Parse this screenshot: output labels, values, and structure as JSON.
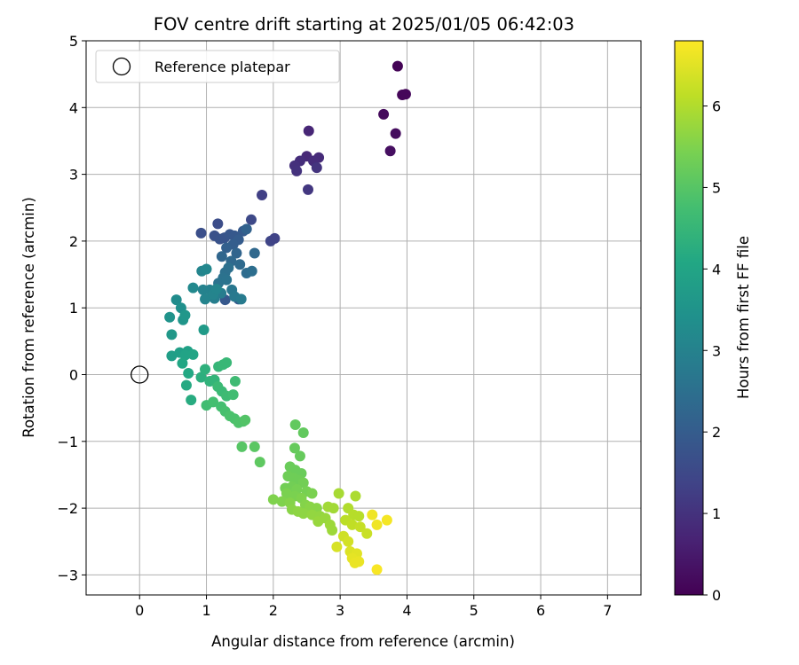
{
  "chart_data": {
    "type": "scatter",
    "title": "FOV centre drift starting at 2025/01/05 06:42:03",
    "xlabel": "Angular distance from reference (arcmin)",
    "ylabel": "Rotation from reference (arcmin)",
    "xlim": [
      -0.8,
      7.5
    ],
    "ylim": [
      -3.3,
      5.0
    ],
    "xticks": [
      0,
      1,
      2,
      3,
      4,
      5,
      6,
      7
    ],
    "yticks": [
      -3,
      -2,
      -1,
      0,
      1,
      2,
      3,
      4,
      5
    ],
    "grid": true,
    "legend": {
      "placement": "upper-left",
      "entries": [
        {
          "label": "Reference platepar",
          "marker": "open-circle"
        }
      ]
    },
    "reference_point": {
      "x": 0,
      "y": 0
    },
    "colorbar": {
      "label": "Hours from first FF file",
      "range": [
        0,
        6.8
      ],
      "ticks": [
        0,
        1,
        2,
        3,
        4,
        5,
        6
      ],
      "colormap": "viridis"
    },
    "points": [
      [
        3.86,
        4.62,
        0.05
      ],
      [
        3.93,
        4.19,
        0.1
      ],
      [
        3.98,
        4.2,
        0.12
      ],
      [
        3.65,
        3.9,
        0.18
      ],
      [
        3.83,
        3.61,
        0.22
      ],
      [
        3.75,
        3.35,
        0.28
      ],
      [
        2.53,
        3.65,
        0.75
      ],
      [
        2.5,
        3.27,
        0.8
      ],
      [
        2.68,
        3.25,
        0.85
      ],
      [
        2.4,
        3.2,
        0.9
      ],
      [
        2.32,
        3.13,
        0.95
      ],
      [
        2.6,
        3.2,
        0.88
      ],
      [
        2.35,
        3.05,
        1.0
      ],
      [
        2.65,
        3.1,
        1.05
      ],
      [
        2.52,
        2.77,
        1.1
      ],
      [
        1.83,
        2.69,
        1.3
      ],
      [
        1.96,
        2.0,
        1.4
      ],
      [
        2.02,
        2.04,
        1.35
      ],
      [
        1.67,
        2.32,
        1.5
      ],
      [
        1.17,
        2.26,
        1.6
      ],
      [
        0.92,
        2.12,
        1.65
      ],
      [
        1.12,
        2.08,
        1.7
      ],
      [
        1.2,
        2.03,
        1.75
      ],
      [
        1.27,
        2.05,
        1.8
      ],
      [
        1.35,
        2.1,
        1.85
      ],
      [
        1.42,
        2.08,
        1.9
      ],
      [
        1.55,
        2.15,
        1.95
      ],
      [
        1.48,
        2.02,
        2.0
      ],
      [
        1.4,
        1.95,
        2.05
      ],
      [
        1.3,
        1.9,
        2.1
      ],
      [
        1.6,
        2.18,
        2.15
      ],
      [
        1.45,
        1.82,
        2.2
      ],
      [
        1.23,
        1.77,
        2.25
      ],
      [
        1.37,
        1.7,
        2.3
      ],
      [
        1.5,
        1.65,
        2.35
      ],
      [
        1.72,
        1.82,
        2.3
      ],
      [
        1.6,
        1.52,
        2.4
      ],
      [
        1.68,
        1.55,
        2.45
      ],
      [
        1.28,
        1.53,
        2.5
      ],
      [
        1.33,
        1.6,
        2.5
      ],
      [
        1.25,
        1.45,
        2.55
      ],
      [
        1.18,
        1.37,
        2.6
      ],
      [
        1.3,
        1.42,
        2.6
      ],
      [
        1.28,
        1.12,
        1.9
      ],
      [
        1.48,
        1.13,
        2.0
      ],
      [
        1.38,
        1.27,
        2.7
      ],
      [
        1.42,
        1.17,
        2.75
      ],
      [
        1.52,
        1.13,
        2.8
      ],
      [
        1.22,
        1.22,
        2.85
      ],
      [
        1.12,
        1.14,
        2.9
      ],
      [
        1.05,
        1.27,
        2.95
      ],
      [
        0.95,
        1.27,
        3.0
      ],
      [
        0.98,
        1.13,
        3.05
      ],
      [
        1.1,
        1.2,
        3.05
      ],
      [
        1.15,
        1.28,
        3.1
      ],
      [
        0.93,
        1.55,
        3.1
      ],
      [
        1.0,
        1.58,
        3.15
      ],
      [
        0.8,
        1.3,
        3.2
      ],
      [
        0.55,
        1.12,
        3.3
      ],
      [
        0.62,
        1.0,
        3.4
      ],
      [
        0.45,
        0.86,
        3.5
      ],
      [
        0.65,
        0.82,
        3.55
      ],
      [
        0.68,
        0.89,
        3.6
      ],
      [
        0.48,
        0.6,
        3.65
      ],
      [
        0.96,
        0.67,
        3.7
      ],
      [
        0.48,
        0.28,
        3.8
      ],
      [
        0.6,
        0.33,
        3.85
      ],
      [
        0.72,
        0.35,
        3.9
      ],
      [
        0.68,
        0.29,
        3.95
      ],
      [
        0.8,
        0.3,
        4.0
      ],
      [
        0.64,
        0.17,
        4.05
      ],
      [
        0.73,
        0.02,
        4.1
      ],
      [
        0.7,
        -0.16,
        4.15
      ],
      [
        0.77,
        -0.38,
        4.2
      ],
      [
        0.92,
        -0.04,
        4.3
      ],
      [
        0.98,
        0.08,
        4.35
      ],
      [
        1.05,
        -0.1,
        4.4
      ],
      [
        1.12,
        -0.08,
        4.45
      ],
      [
        1.18,
        0.12,
        4.5
      ],
      [
        1.25,
        0.15,
        4.55
      ],
      [
        1.3,
        0.18,
        4.55
      ],
      [
        1.17,
        -0.18,
        4.6
      ],
      [
        1.23,
        -0.25,
        4.6
      ],
      [
        1.3,
        -0.32,
        4.65
      ],
      [
        1.4,
        -0.3,
        4.7
      ],
      [
        1.43,
        -0.1,
        4.65
      ],
      [
        1.0,
        -0.46,
        4.7
      ],
      [
        1.1,
        -0.41,
        4.75
      ],
      [
        1.22,
        -0.48,
        4.75
      ],
      [
        1.28,
        -0.55,
        4.8
      ],
      [
        1.35,
        -0.62,
        4.85
      ],
      [
        1.42,
        -0.66,
        4.85
      ],
      [
        1.48,
        -0.72,
        4.9
      ],
      [
        1.55,
        -0.7,
        4.9
      ],
      [
        1.58,
        -0.68,
        4.95
      ],
      [
        1.53,
        -1.08,
        5.0
      ],
      [
        1.72,
        -1.08,
        5.05
      ],
      [
        1.8,
        -1.31,
        5.1
      ],
      [
        2.33,
        -0.75,
        5.15
      ],
      [
        2.45,
        -0.87,
        5.15
      ],
      [
        2.32,
        -1.1,
        5.2
      ],
      [
        2.4,
        -1.22,
        5.2
      ],
      [
        2.25,
        -1.38,
        5.25
      ],
      [
        2.33,
        -1.43,
        5.25
      ],
      [
        2.42,
        -1.48,
        5.25
      ],
      [
        2.22,
        -1.52,
        5.3
      ],
      [
        2.3,
        -1.55,
        5.3
      ],
      [
        2.38,
        -1.58,
        5.3
      ],
      [
        2.45,
        -1.62,
        5.35
      ],
      [
        2.28,
        -1.68,
        5.35
      ],
      [
        2.18,
        -1.7,
        5.35
      ],
      [
        2.35,
        -1.72,
        5.4
      ],
      [
        2.5,
        -1.75,
        5.4
      ],
      [
        2.58,
        -1.78,
        5.45
      ],
      [
        2.2,
        -1.78,
        5.45
      ],
      [
        2.32,
        -1.82,
        5.45
      ],
      [
        2.42,
        -1.85,
        5.5
      ],
      [
        2.0,
        -1.87,
        5.5
      ],
      [
        2.13,
        -1.9,
        5.5
      ],
      [
        2.25,
        -1.92,
        5.55
      ],
      [
        2.48,
        -1.95,
        5.55
      ],
      [
        2.55,
        -1.98,
        5.6
      ],
      [
        2.65,
        -2.0,
        5.6
      ],
      [
        2.28,
        -2.02,
        5.6
      ],
      [
        2.37,
        -2.05,
        5.65
      ],
      [
        2.45,
        -2.08,
        5.65
      ],
      [
        2.58,
        -2.1,
        5.7
      ],
      [
        2.7,
        -2.12,
        5.7
      ],
      [
        2.67,
        -2.2,
        5.75
      ],
      [
        2.78,
        -2.15,
        5.75
      ],
      [
        2.85,
        -2.25,
        5.8
      ],
      [
        2.88,
        -2.33,
        5.8
      ],
      [
        2.9,
        -2.0,
        5.85
      ],
      [
        2.82,
        -1.98,
        5.85
      ],
      [
        2.98,
        -1.78,
        5.9
      ],
      [
        3.23,
        -1.82,
        5.95
      ],
      [
        3.12,
        -2.0,
        6.0
      ],
      [
        3.2,
        -2.1,
        6.05
      ],
      [
        3.28,
        -2.12,
        6.05
      ],
      [
        3.08,
        -2.18,
        6.1
      ],
      [
        3.18,
        -2.25,
        6.15
      ],
      [
        3.3,
        -2.28,
        6.2
      ],
      [
        3.4,
        -2.38,
        6.25
      ],
      [
        3.05,
        -2.42,
        6.3
      ],
      [
        3.12,
        -2.5,
        6.35
      ],
      [
        2.95,
        -2.58,
        6.4
      ],
      [
        3.15,
        -2.65,
        6.45
      ],
      [
        3.25,
        -2.68,
        6.5
      ],
      [
        3.18,
        -2.75,
        6.55
      ],
      [
        3.28,
        -2.8,
        6.6
      ],
      [
        3.22,
        -2.82,
        6.6
      ],
      [
        3.55,
        -2.25,
        6.65
      ],
      [
        3.48,
        -2.1,
        6.65
      ],
      [
        3.7,
        -2.18,
        6.7
      ],
      [
        3.55,
        -2.92,
        6.75
      ]
    ]
  }
}
